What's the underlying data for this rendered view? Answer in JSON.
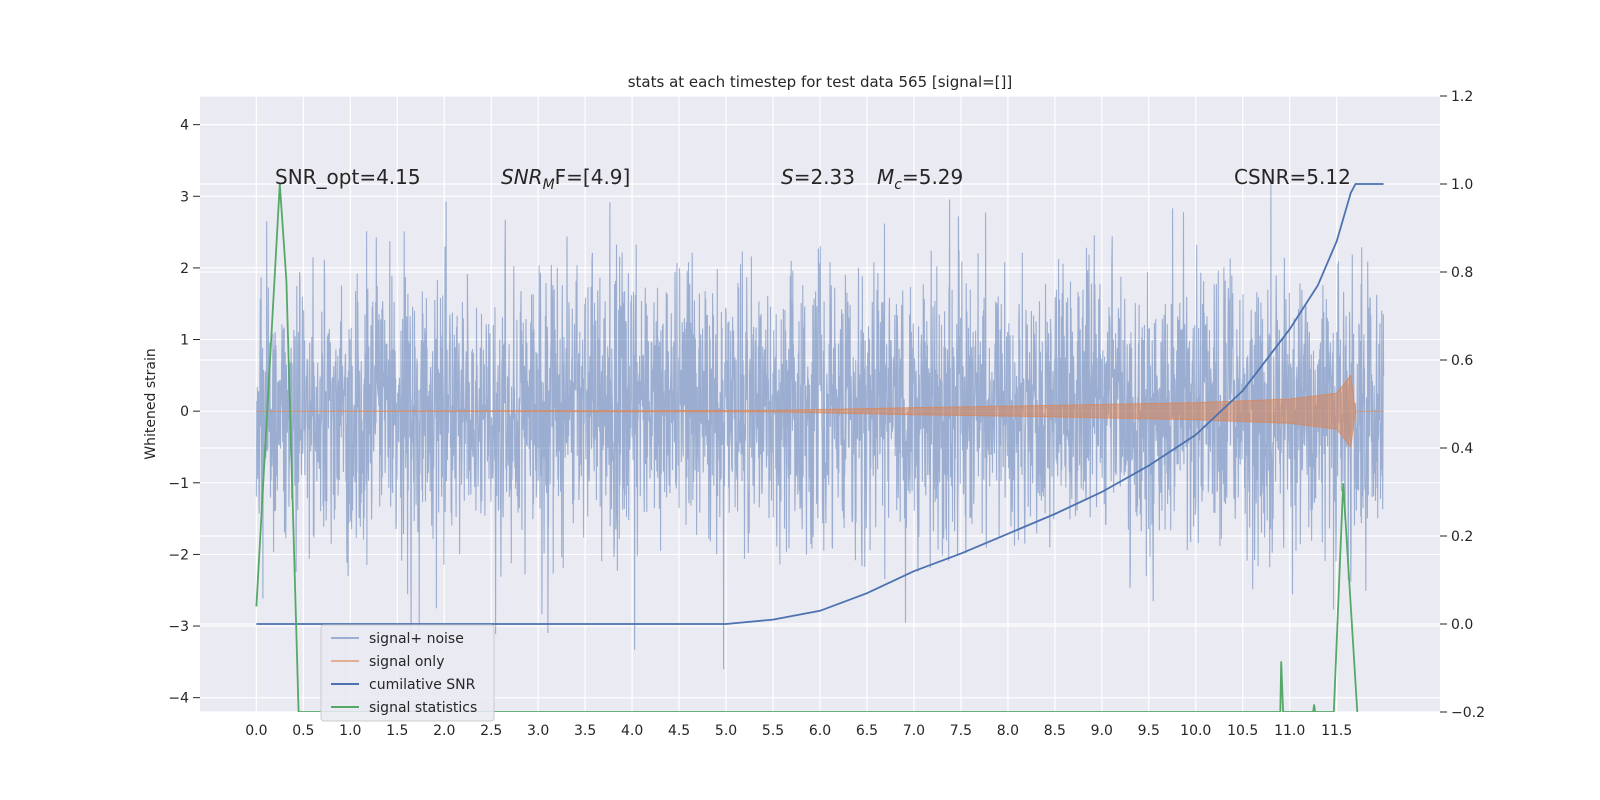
{
  "chart_data": {
    "type": "line",
    "title": "stats at each timestep for test data 565 [signal=[]]",
    "ylabel": "Whitened strain",
    "y2label": "",
    "xlabel": "",
    "xlim": [
      -0.6,
      12.6
    ],
    "ylim": [
      -4.2,
      4.4
    ],
    "y2lim": [
      -0.2,
      1.2
    ],
    "xticks": [
      "0.0",
      "0.5",
      "1.0",
      "1.5",
      "2.0",
      "2.5",
      "3.0",
      "3.5",
      "4.0",
      "4.5",
      "5.0",
      "5.5",
      "6.0",
      "6.5",
      "7.0",
      "7.5",
      "8.0",
      "8.5",
      "9.0",
      "9.5",
      "10.0",
      "10.5",
      "11.0",
      "11.5"
    ],
    "yticks": [
      "4",
      "3",
      "2",
      "1",
      "0",
      "−1",
      "−2",
      "−3",
      "−4"
    ],
    "y2ticks": [
      "1.2",
      "1.0",
      "0.8",
      "0.6",
      "0.4",
      "0.2",
      "0.0",
      "−0.2"
    ],
    "grid": true,
    "legend_placement": "lower-left",
    "background": "#eaeaf2",
    "annotations": [
      {
        "text": "SNR_opt=4.15",
        "x": 0.2,
        "y": 3.2
      },
      {
        "text": "SNRMF=[4.9]",
        "x": 2.6,
        "y": 3.2
      },
      {
        "text": "S=2.33",
        "x": 5.6,
        "y": 3.2
      },
      {
        "text": "Mc=5.29",
        "x": 6.6,
        "y": 3.2
      },
      {
        "text": "CSNR=5.12",
        "x": 10.4,
        "y": 3.2
      }
    ],
    "annotation_parts": {
      "snr_opt": "SNR_opt=4.15",
      "snrmf_main": "SNR",
      "snrmf_sub": "M",
      "snrmf_rest": "F=[4.9]",
      "s_var": "S",
      "s_val": "=2.33",
      "mc_var": "M",
      "mc_sub": "c",
      "mc_val": "=5.29",
      "csnr": "CSNR=5.12"
    },
    "series": [
      {
        "name": "signal+ noise",
        "color": "#4c72b0",
        "alpha": 0.5,
        "axis": "left",
        "description_range": {
          "x": [
            0.0,
            12.0
          ],
          "envelope_low": -2.0,
          "envelope_high": 2.2
        }
      },
      {
        "name": "signal only",
        "color": "#dd8452",
        "alpha": 0.6,
        "axis": "left",
        "envelope_x": [
          0.0,
          5.5,
          7.0,
          8.5,
          10.0,
          11.0,
          11.5,
          11.65,
          11.7,
          12.0
        ],
        "envelope_amp": [
          0.0,
          0.01,
          0.05,
          0.08,
          0.12,
          0.17,
          0.25,
          0.5,
          0.0,
          0.0
        ]
      },
      {
        "name": "cumilative SNR",
        "color": "#4c72b0",
        "axis": "right",
        "x": [
          0.0,
          5.0,
          5.5,
          6.0,
          6.5,
          7.0,
          7.5,
          8.0,
          8.5,
          9.0,
          9.5,
          10.0,
          10.5,
          11.0,
          11.3,
          11.5,
          11.65,
          11.7,
          12.0
        ],
        "y": [
          0.0,
          0.0,
          0.01,
          0.03,
          0.07,
          0.12,
          0.16,
          0.205,
          0.25,
          0.3,
          0.36,
          0.43,
          0.53,
          0.67,
          0.77,
          0.87,
          0.98,
          1.0,
          1.0
        ]
      },
      {
        "name": "signal statistics",
        "color": "#55a868",
        "axis": "right",
        "x": [
          0.0,
          0.25,
          0.32,
          0.45,
          10.9,
          10.91,
          10.93,
          11.25,
          11.26,
          11.27,
          11.47,
          11.57,
          11.72
        ],
        "y": [
          0.04,
          1.0,
          0.78,
          -0.2,
          -0.2,
          -0.085,
          -0.2,
          -0.2,
          -0.183,
          -0.2,
          -0.2,
          0.32,
          -0.2
        ]
      }
    ]
  }
}
